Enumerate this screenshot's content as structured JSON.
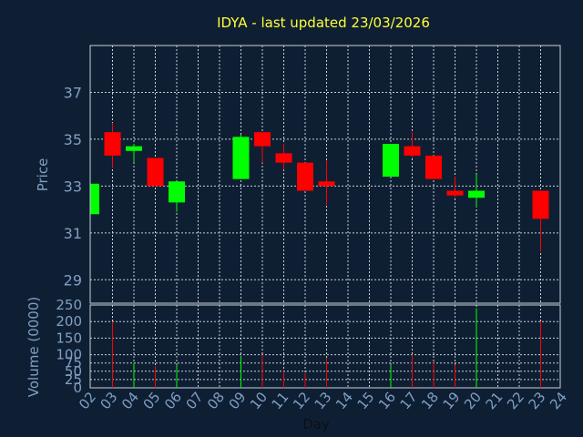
{
  "chart_data": {
    "type": "candlestick",
    "title": "IDYA - last updated 23/03/2026",
    "colors": {
      "background": "#0f1f33",
      "frame": "#c8d0d8",
      "grid": "#c8d0d8",
      "up": "#00ff00",
      "down": "#ff0000",
      "title": "#ffff3a",
      "axis_text": "#7f9fc4",
      "xlabel_text": "#0a0f17"
    },
    "grid": true,
    "price_panel": {
      "ylabel": "Price",
      "ylim": [
        28,
        39
      ],
      "yticks": [
        29,
        31,
        33,
        35,
        37
      ]
    },
    "volume_panel": {
      "ylabel": "Volume (0000)",
      "ylim": [
        0,
        250
      ],
      "yticks": [
        0,
        25,
        50,
        75,
        100,
        150,
        200,
        250
      ]
    },
    "xlabel": "Day",
    "xtick_labels": [
      "02",
      "03",
      "04",
      "05",
      "06",
      "07",
      "08",
      "09",
      "10",
      "11",
      "12",
      "13",
      "14",
      "15",
      "16",
      "17",
      "18",
      "19",
      "20",
      "21",
      "22",
      "23",
      "24"
    ],
    "candles": [
      {
        "day": "02",
        "open": 31.8,
        "high": 33.1,
        "low": 31.8,
        "close": 33.1,
        "volume": 0
      },
      {
        "day": "03",
        "open": 35.3,
        "high": 35.7,
        "low": 33.8,
        "close": 34.3,
        "volume": 200
      },
      {
        "day": "04",
        "open": 34.5,
        "high": 34.8,
        "low": 34.0,
        "close": 34.7,
        "volume": 75
      },
      {
        "day": "05",
        "open": 34.2,
        "high": 34.2,
        "low": 33.0,
        "close": 33.0,
        "volume": 65
      },
      {
        "day": "06",
        "open": 32.3,
        "high": 33.2,
        "low": 31.9,
        "close": 33.2,
        "volume": 70
      },
      {
        "day": "09",
        "open": 33.3,
        "high": 35.2,
        "low": 33.3,
        "close": 35.1,
        "volume": 95
      },
      {
        "day": "10",
        "open": 35.3,
        "high": 35.3,
        "low": 34.0,
        "close": 34.7,
        "volume": 100
      },
      {
        "day": "11",
        "open": 34.4,
        "high": 34.8,
        "low": 33.7,
        "close": 34.0,
        "volume": 50
      },
      {
        "day": "12",
        "open": 34.0,
        "high": 34.0,
        "low": 32.8,
        "close": 32.8,
        "volume": 45
      },
      {
        "day": "13",
        "open": 33.2,
        "high": 34.1,
        "low": 32.2,
        "close": 33.0,
        "volume": 90
      },
      {
        "day": "16",
        "open": 33.4,
        "high": 34.8,
        "low": 33.4,
        "close": 34.8,
        "volume": 70
      },
      {
        "day": "17",
        "open": 34.7,
        "high": 35.3,
        "low": 34.2,
        "close": 34.3,
        "volume": 100
      },
      {
        "day": "18",
        "open": 34.3,
        "high": 34.3,
        "low": 33.3,
        "close": 33.3,
        "volume": 80
      },
      {
        "day": "19",
        "open": 32.8,
        "high": 33.4,
        "low": 32.5,
        "close": 32.6,
        "volume": 70
      },
      {
        "day": "20",
        "open": 32.5,
        "high": 33.5,
        "low": 32.1,
        "close": 32.8,
        "volume": 240
      },
      {
        "day": "23",
        "open": 32.8,
        "high": 32.8,
        "low": 30.2,
        "close": 31.6,
        "volume": 200
      }
    ]
  }
}
